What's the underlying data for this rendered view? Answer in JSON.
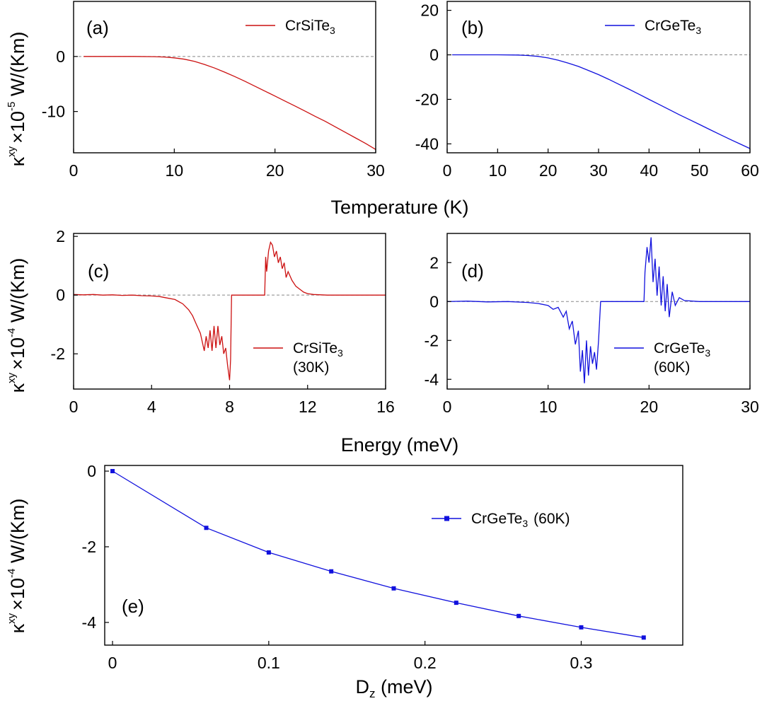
{
  "figure": {
    "xlabel_temperature": "Temperature (K)",
    "xlabel_energy": "Energy (meV)",
    "ylabel_prefix": "κ",
    "ylabel_sup_xy": "xy",
    "ylabel_times": "×10",
    "ylabel_exp_a": "-5",
    "ylabel_exp_c": "-4",
    "ylabel_exp_e": "-4",
    "ylabel_unit": " W/(Km)",
    "xlabel_e_main": "D",
    "xlabel_e_sub": "z",
    "xlabel_e_unit": " (meV)"
  },
  "colors": {
    "red": "#cc1111",
    "blue": "#1111dd"
  },
  "chart_data": [
    {
      "id": "a",
      "type": "line",
      "label": "(a)",
      "legend_main": "CrSiTe",
      "legend_sub": "3",
      "legend_extra": "",
      "xlim": [
        0,
        30
      ],
      "ylim": [
        -17.5,
        10
      ],
      "xticks": [
        0,
        10,
        20,
        30
      ],
      "yticks": [
        0,
        -10
      ],
      "series": [
        {
          "name": "CrSiTe3",
          "color": "red",
          "x": [
            1,
            4,
            6,
            8,
            9,
            10,
            11,
            12,
            13,
            14,
            15,
            16,
            17,
            18,
            19,
            20,
            21,
            22,
            23,
            24,
            25,
            26,
            27,
            28,
            29,
            30
          ],
          "y": [
            0,
            0,
            0,
            -0.03,
            -0.1,
            -0.25,
            -0.5,
            -0.9,
            -1.45,
            -2.1,
            -2.85,
            -3.65,
            -4.5,
            -5.4,
            -6.3,
            -7.2,
            -8.1,
            -9.0,
            -9.95,
            -10.9,
            -11.8,
            -12.8,
            -13.8,
            -14.8,
            -15.8,
            -16.9
          ]
        }
      ]
    },
    {
      "id": "b",
      "type": "line",
      "label": "(b)",
      "legend_main": "CrGeTe",
      "legend_sub": "3",
      "legend_extra": "",
      "xlim": [
        0,
        60
      ],
      "ylim": [
        -44,
        24
      ],
      "xticks": [
        0,
        10,
        20,
        30,
        40,
        50,
        60
      ],
      "yticks": [
        20,
        0,
        -20,
        -40
      ],
      "series": [
        {
          "name": "CrGeTe3",
          "color": "blue",
          "x": [
            1,
            5,
            10,
            14,
            16,
            18,
            20,
            22,
            24,
            26,
            28,
            30,
            32,
            34,
            36,
            38,
            40,
            42,
            44,
            46,
            48,
            50,
            52,
            54,
            56,
            58,
            60
          ],
          "y": [
            0,
            0,
            0,
            -0.1,
            -0.3,
            -0.7,
            -1.4,
            -2.4,
            -3.7,
            -5.2,
            -7.0,
            -8.9,
            -11.0,
            -13.2,
            -15.4,
            -17.7,
            -20.0,
            -22.3,
            -24.6,
            -26.9,
            -29.1,
            -31.3,
            -33.5,
            -35.7,
            -37.9,
            -40.0,
            -42.1
          ]
        }
      ]
    },
    {
      "id": "c",
      "type": "line",
      "label": "(c)",
      "legend_main": "CrSiTe",
      "legend_sub": "3",
      "legend_extra": "(30K)",
      "xlim": [
        0,
        16
      ],
      "ylim": [
        -3.2,
        2.1
      ],
      "xticks": [
        0,
        4,
        8,
        12,
        16
      ],
      "yticks": [
        2,
        0,
        -2
      ],
      "series": [
        {
          "name": "CrSiTe3 (30K)",
          "color": "red",
          "x": [
            0,
            0.5,
            1,
            1.5,
            2,
            2.5,
            3,
            3.5,
            4,
            4.4,
            4.8,
            5.2,
            5.6,
            5.9,
            6.1,
            6.3,
            6.5,
            6.7,
            6.8,
            6.9,
            7.0,
            7.1,
            7.2,
            7.3,
            7.4,
            7.5,
            7.6,
            7.7,
            7.8,
            7.9,
            8.0,
            8.05,
            8.1,
            8.2,
            8.3,
            9.0,
            9.8,
            9.85,
            9.9,
            10.0,
            10.1,
            10.2,
            10.3,
            10.4,
            10.5,
            10.6,
            10.7,
            10.8,
            10.9,
            11.0,
            11.2,
            11.4,
            11.6,
            11.8,
            12.0,
            12.3,
            13,
            14,
            16
          ],
          "y": [
            0.02,
            0.01,
            0.02,
            0,
            0.01,
            -0.01,
            0,
            -0.02,
            -0.03,
            -0.05,
            -0.1,
            -0.15,
            -0.3,
            -0.5,
            -0.7,
            -1.0,
            -1.3,
            -1.9,
            -1.4,
            -1.8,
            -1.2,
            -1.9,
            -1.05,
            -1.8,
            -1.05,
            -1.7,
            -1.4,
            -2.0,
            -1.8,
            -2.4,
            -2.9,
            -2.2,
            0,
            0,
            0,
            0,
            0,
            1.3,
            0.8,
            1.5,
            1.8,
            1.7,
            1.3,
            1.5,
            1.1,
            1.3,
            0.9,
            1.1,
            0.6,
            0.8,
            0.5,
            0.3,
            0.2,
            0.1,
            0.05,
            0.02,
            0,
            0,
            0
          ]
        }
      ]
    },
    {
      "id": "d",
      "type": "line",
      "label": "(d)",
      "legend_main": "CrGeTe",
      "legend_sub": "3",
      "legend_extra": "(60K)",
      "xlim": [
        0,
        30
      ],
      "ylim": [
        -4.5,
        3.5
      ],
      "xticks": [
        0,
        10,
        20,
        30
      ],
      "yticks": [
        2,
        0,
        -2,
        -4
      ],
      "series": [
        {
          "name": "CrGeTe3 (60K)",
          "color": "blue",
          "x": [
            0,
            2,
            4,
            6,
            8,
            9,
            10,
            10.5,
            11,
            11.5,
            11.8,
            12.1,
            12.4,
            12.7,
            13.0,
            13.2,
            13.4,
            13.6,
            13.8,
            14.0,
            14.2,
            14.4,
            14.6,
            14.8,
            15.0,
            15.2,
            17,
            19.5,
            19.6,
            19.8,
            20.0,
            20.2,
            20.4,
            20.6,
            20.8,
            21.0,
            21.2,
            21.4,
            21.6,
            21.8,
            22.0,
            22.3,
            22.6,
            23.0,
            23.5,
            25,
            30
          ],
          "y": [
            0,
            0.02,
            -0.02,
            0,
            -0.05,
            -0.1,
            -0.2,
            -0.4,
            -0.3,
            -0.8,
            -0.5,
            -1.4,
            -1.0,
            -2.2,
            -1.5,
            -3.6,
            -2.5,
            -4.2,
            -2.0,
            -3.8,
            -2.3,
            -3.2,
            -2.6,
            -3.5,
            -2.0,
            0,
            0,
            0,
            1.5,
            2.8,
            2.0,
            3.3,
            1.0,
            2.2,
            0.3,
            1.8,
            -0.2,
            1.3,
            -0.5,
            0.9,
            -0.8,
            0.5,
            -0.2,
            0.2,
            0.05,
            0,
            0
          ]
        }
      ]
    },
    {
      "id": "e",
      "type": "line",
      "label": "(e)",
      "legend_main": "CrGeTe",
      "legend_sub": "3",
      "legend_extra": "(60K)",
      "xlim": [
        -0.005,
        0.365
      ],
      "ylim": [
        -4.6,
        0.15
      ],
      "xticks": [
        0,
        0.1,
        0.2,
        0.3
      ],
      "xtick_labels": [
        "0",
        "0.1",
        "0.2",
        "0.3"
      ],
      "yticks": [
        0,
        -2,
        -4
      ],
      "series": [
        {
          "name": "CrGeTe3 (60K)",
          "color": "blue",
          "markers": true,
          "x": [
            0,
            0.06,
            0.1,
            0.14,
            0.18,
            0.22,
            0.26,
            0.3,
            0.34
          ],
          "y": [
            0,
            -1.5,
            -2.15,
            -2.65,
            -3.1,
            -3.48,
            -3.83,
            -4.13,
            -4.4
          ]
        }
      ]
    }
  ]
}
